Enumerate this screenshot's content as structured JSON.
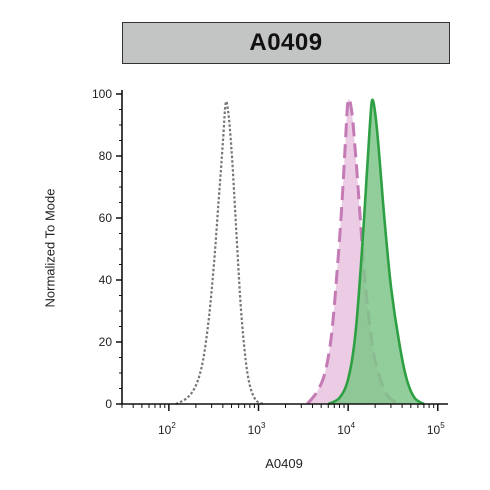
{
  "panel_title": "A0409",
  "chart_data": {
    "type": "area",
    "title": "A0409",
    "xlabel": "A0409",
    "ylabel": "Normalized To Mode",
    "x_scale": "log",
    "xlim": [
      30,
      130000
    ],
    "ylim": [
      0,
      100
    ],
    "x_tick_labels": [
      "10^2",
      "10^3",
      "10^4",
      "10^5"
    ],
    "x_tick_values": [
      100,
      1000,
      10000,
      100000
    ],
    "y_tick_labels": [
      "0",
      "20",
      "40",
      "60",
      "80",
      "100"
    ],
    "y_tick_values": [
      0,
      20,
      40,
      60,
      80,
      100
    ],
    "grid": false,
    "legend": "none",
    "series": [
      {
        "style": "dotted-outline",
        "color": "#777777",
        "fill": "none",
        "x": [
          120,
          160,
          200,
          240,
          280,
          320,
          360,
          400,
          430,
          460,
          500,
          540,
          580,
          640,
          720,
          800,
          900,
          1000,
          1150
        ],
        "y": [
          0,
          2,
          6,
          14,
          28,
          46,
          66,
          84,
          97,
          94,
          82,
          66,
          50,
          30,
          14,
          6,
          2,
          0.5,
          0
        ]
      },
      {
        "style": "dashed-outline-filled",
        "color": "#c47ab4",
        "fill": "#e9c6e1",
        "x": [
          3500,
          4500,
          5500,
          6500,
          7500,
          8500,
          9300,
          10000,
          11000,
          12000,
          13500,
          15000,
          17000,
          20000,
          25000,
          30000,
          40000
        ],
        "y": [
          0,
          4,
          10,
          22,
          42,
          64,
          84,
          98,
          94,
          82,
          62,
          44,
          28,
          14,
          5,
          1.5,
          0
        ]
      },
      {
        "style": "solid-outline-filled",
        "color": "#2ea043",
        "fill": "#7fc58a",
        "x": [
          6000,
          8000,
          10000,
          12000,
          14000,
          16000,
          17500,
          18500,
          20000,
          22000,
          25000,
          30000,
          37000,
          45000,
          55000,
          70000
        ],
        "y": [
          0,
          2,
          8,
          22,
          46,
          72,
          90,
          98,
          94,
          82,
          62,
          38,
          20,
          8,
          2,
          0
        ]
      }
    ]
  }
}
